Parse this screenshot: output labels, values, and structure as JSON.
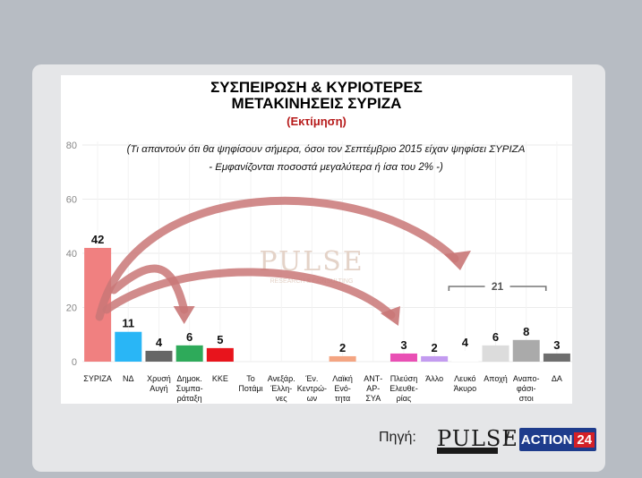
{
  "header": {
    "title_line1": "ΣΥΣΠΕΙΡΩΣΗ & ΚΥΡΙΟΤΕΡΕΣ",
    "title_line2": "ΜΕΤΑΚΙΝΗΣΕΙΣ ΣΥΡΙΖΑ",
    "subtitle": "(Εκτίμηση)"
  },
  "chart_data": {
    "type": "bar",
    "note_line1": "(Τι απαντούν ότι θα ψηφίσουν σήμερα, όσοι τον Σεπτέμβριο 2015 είχαν ψηφίσει ΣΥΡΙΖΑ",
    "note_line2": "- Εμφανίζονται ποσοστά μεγαλύτερα ή ίσα του 2% -)",
    "ylim": [
      0,
      80
    ],
    "yticks": [
      0,
      20,
      40,
      60,
      80
    ],
    "grid": true,
    "categories": [
      {
        "label": [
          "ΣΥΡΙΖΑ"
        ],
        "value": 42,
        "color": "#f08080"
      },
      {
        "label": [
          "ΝΔ"
        ],
        "value": 11,
        "color": "#29b6f6"
      },
      {
        "label": [
          "Χρυσή",
          "Αυγή"
        ],
        "value": 4,
        "color": "#666666"
      },
      {
        "label": [
          "Δημοκ.",
          "Συμπα-",
          "ράταξη"
        ],
        "value": 6,
        "color": "#2eaa5a"
      },
      {
        "label": [
          "ΚΚΕ"
        ],
        "value": 5,
        "color": "#e8141c"
      },
      {
        "label": [
          "Το",
          "Ποτάμι"
        ],
        "value": null,
        "color": "#cccccc"
      },
      {
        "label": [
          "Ανεξάρ.",
          "Έλλη-",
          "νες"
        ],
        "value": null,
        "color": "#cccccc"
      },
      {
        "label": [
          "Έν.",
          "Κεντρώ-",
          "ων"
        ],
        "value": null,
        "color": "#cccccc"
      },
      {
        "label": [
          "Λαϊκή",
          "Ενό-",
          "τητα"
        ],
        "value": 2,
        "color": "#f4a582"
      },
      {
        "label": [
          "ΑΝΤ-",
          "ΑΡ-",
          "ΣΥΑ"
        ],
        "value": null,
        "color": "#cccccc"
      },
      {
        "label": [
          "Πλεύση",
          "Ελευθε-",
          "ρίας"
        ],
        "value": 3,
        "color": "#e94fb4"
      },
      {
        "label": [
          "Άλλο"
        ],
        "value": 2,
        "color": "#c39bf0"
      },
      {
        "label": [
          "Λευκό",
          "Άκυρο"
        ],
        "value": 4,
        "color": "#ffffff"
      },
      {
        "label": [
          "Αποχή"
        ],
        "value": 6,
        "color": "#dcdcdc"
      },
      {
        "label": [
          "Αναπο-",
          "φάσι-",
          "στοι"
        ],
        "value": 8,
        "color": "#aaaaaa"
      },
      {
        "label": [
          "ΔΑ"
        ],
        "value": 3,
        "color": "#6e6e6e"
      }
    ],
    "bracket_label": "21"
  },
  "watermark": {
    "text": "PULSE",
    "sub": "RESEARCH & CONSULTING"
  },
  "footer": {
    "source_label": "Πηγή:",
    "pulse_logo": "PULSE",
    "separator": "/",
    "action_text": "ACTION",
    "action_num": "24"
  },
  "colors": {
    "arrow": "#c97777",
    "grid": "#ebebeb",
    "axis_text": "#888888"
  }
}
